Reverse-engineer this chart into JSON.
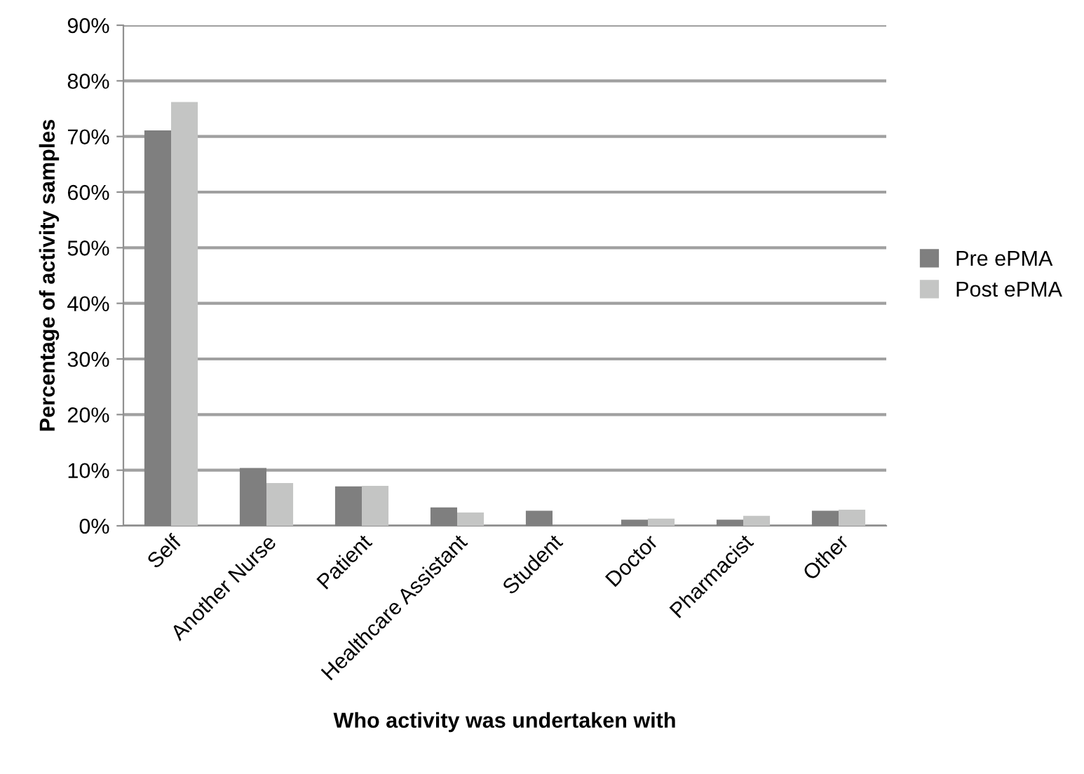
{
  "chart_data": {
    "type": "bar",
    "xlabel": "Who activity was undertaken with",
    "ylabel": "Percentage of activity samples",
    "categories": [
      "Self",
      "Another Nurse",
      "Patient",
      "Healthcare Assistant",
      "Student",
      "Doctor",
      "Pharmacist",
      "Other"
    ],
    "series": [
      {
        "name": "Pre ePMA",
        "color": "#7f7f7f",
        "values": [
          71.1,
          10.4,
          7.1,
          3.3,
          2.7,
          1.1,
          1.1,
          2.7
        ]
      },
      {
        "name": "Post ePMA",
        "color": "#c4c5c4",
        "values": [
          76.2,
          7.7,
          7.2,
          2.4,
          0,
          1.3,
          1.8,
          2.9
        ]
      }
    ],
    "ylim": [
      0,
      90
    ],
    "yticks": [
      {
        "value": 0,
        "label": "0%"
      },
      {
        "value": 10,
        "label": "10%"
      },
      {
        "value": 20,
        "label": "20%"
      },
      {
        "value": 30,
        "label": "30%"
      },
      {
        "value": 40,
        "label": "40%"
      },
      {
        "value": 50,
        "label": "50%"
      },
      {
        "value": 60,
        "label": "60%"
      },
      {
        "value": 70,
        "label": "70%"
      },
      {
        "value": 80,
        "label": "80%"
      },
      {
        "value": 90,
        "label": "90%"
      }
    ],
    "grid": "y",
    "legend": "right"
  }
}
